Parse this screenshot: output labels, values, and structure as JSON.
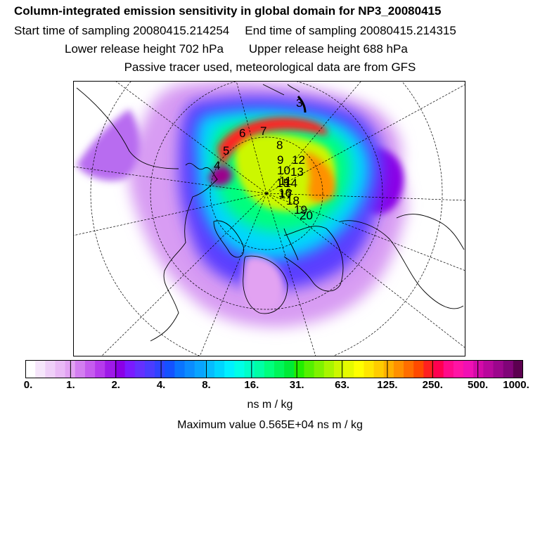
{
  "header": {
    "title": "Column-integrated emission sensitivity in global domain for NP3_20080415",
    "start_label": "Start time of sampling",
    "start_value": "20080415.214254",
    "end_label": "End time of sampling",
    "end_value": "20080415.214315",
    "lower_label": "Lower release height",
    "lower_value": "702 hPa",
    "upper_label": "Upper release height",
    "upper_value": "688 hPa",
    "note": "Passive tracer used, meteorological data are from GFS"
  },
  "chart_data": {
    "type": "heatmap",
    "projection": "north polar stereographic",
    "colorbar": {
      "tick_labels": [
        "0.",
        "1.",
        "2.",
        "4.",
        "8.",
        "16.",
        "31.",
        "63.",
        "125.",
        "250.",
        "500.",
        "1000."
      ],
      "colors": [
        "#ffffff",
        "#f6e6fb",
        "#efcff8",
        "#e9b9f5",
        "#e2a2f2",
        "#d37ef0",
        "#c55cee",
        "#b53aec",
        "#9e1ae8",
        "#8a00e6",
        "#7a1aff",
        "#6430ff",
        "#4b3cff",
        "#2f44ff",
        "#1452ff",
        "#0a74ff",
        "#0b8cff",
        "#09a4ff",
        "#06bcff",
        "#00d6ff",
        "#00f0ff",
        "#00ffe6",
        "#00ffc8",
        "#00ffa5",
        "#00ff7d",
        "#00f55a",
        "#00ea38",
        "#22ee00",
        "#55f000",
        "#7ff200",
        "#a8f500",
        "#ccf700",
        "#e6fa00",
        "#ffff00",
        "#ffe600",
        "#ffcc00",
        "#ffb000",
        "#ff9000",
        "#ff6e00",
        "#ff4a00",
        "#ff2020",
        "#ff0050",
        "#ff0a8a",
        "#ff14a5",
        "#f010b4",
        "#d40aa8",
        "#b8089c",
        "#9c068c",
        "#800478",
        "#5c0050"
      ],
      "units": "ns m / kg"
    },
    "max_label": "Maximum value",
    "max_value": "0.565E+04",
    "max_units": "ns m / kg",
    "day_markers": [
      "3",
      "4",
      "5",
      "6",
      "7",
      "8",
      "9",
      "10",
      "11",
      "12",
      "13",
      "14",
      "15",
      "16",
      "17",
      "18",
      "19",
      "20"
    ]
  }
}
